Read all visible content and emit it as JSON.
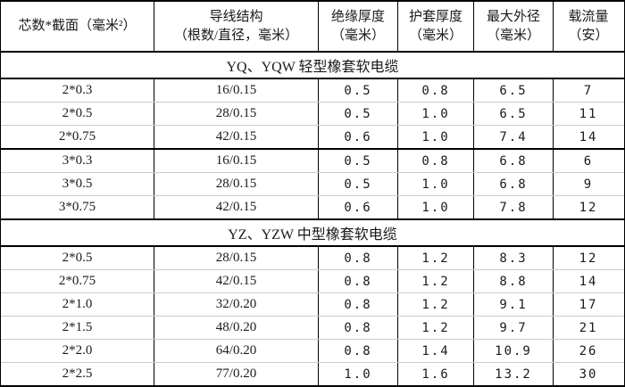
{
  "table": {
    "columns": [
      {
        "line1": "芯数*截面（毫米²）",
        "line2": ""
      },
      {
        "line1": "导线结构",
        "line2": "（根数/直径，毫米）"
      },
      {
        "line1": "绝缘厚度",
        "line2": "（毫米）"
      },
      {
        "line1": "护套厚度",
        "line2": "（毫米）"
      },
      {
        "line1": "最大外径",
        "line2": "（毫米）"
      },
      {
        "line1": "载流量",
        "line2": "（安）"
      }
    ],
    "sections": [
      {
        "title": "YQ、YQW 轻型橡套软电缆",
        "groups": [
          [
            [
              "2*0.3",
              "16/0.15",
              "0.5",
              "0.8",
              "6.5",
              "7"
            ],
            [
              "2*0.5",
              "28/0.15",
              "0.5",
              "1.0",
              "6.5",
              "11"
            ],
            [
              "2*0.75",
              "42/0.15",
              "0.6",
              "1.0",
              "7.4",
              "14"
            ]
          ],
          [
            [
              "3*0.3",
              "16/0.15",
              "0.5",
              "0.8",
              "6.8",
              "6"
            ],
            [
              "3*0.5",
              "28/0.15",
              "0.5",
              "1.0",
              "6.8",
              "9"
            ],
            [
              "3*0.75",
              "42/0.15",
              "0.6",
              "1.0",
              "7.8",
              "12"
            ]
          ]
        ]
      },
      {
        "title": "YZ、YZW 中型橡套软电缆",
        "groups": [
          [
            [
              "2*0.5",
              "28/0.15",
              "0.8",
              "1.2",
              "8.3",
              "12"
            ],
            [
              "2*0.75",
              "42/0.15",
              "0.8",
              "1.2",
              "8.8",
              "14"
            ],
            [
              "2*1.0",
              "32/0.20",
              "0.8",
              "1.2",
              "9.1",
              "17"
            ],
            [
              "2*1.5",
              "48/0.20",
              "0.8",
              "1.2",
              "9.7",
              "21"
            ],
            [
              "2*2.0",
              "64/0.20",
              "0.8",
              "1.4",
              "10.9",
              "26"
            ],
            [
              "2*2.5",
              "77/0.20",
              "1.0",
              "1.6",
              "13.2",
              "30"
            ]
          ]
        ]
      }
    ]
  },
  "colors": {
    "border": "#000000",
    "row_line": "#cccccc",
    "text": "#1a1a1a",
    "background": "#ffffff"
  }
}
